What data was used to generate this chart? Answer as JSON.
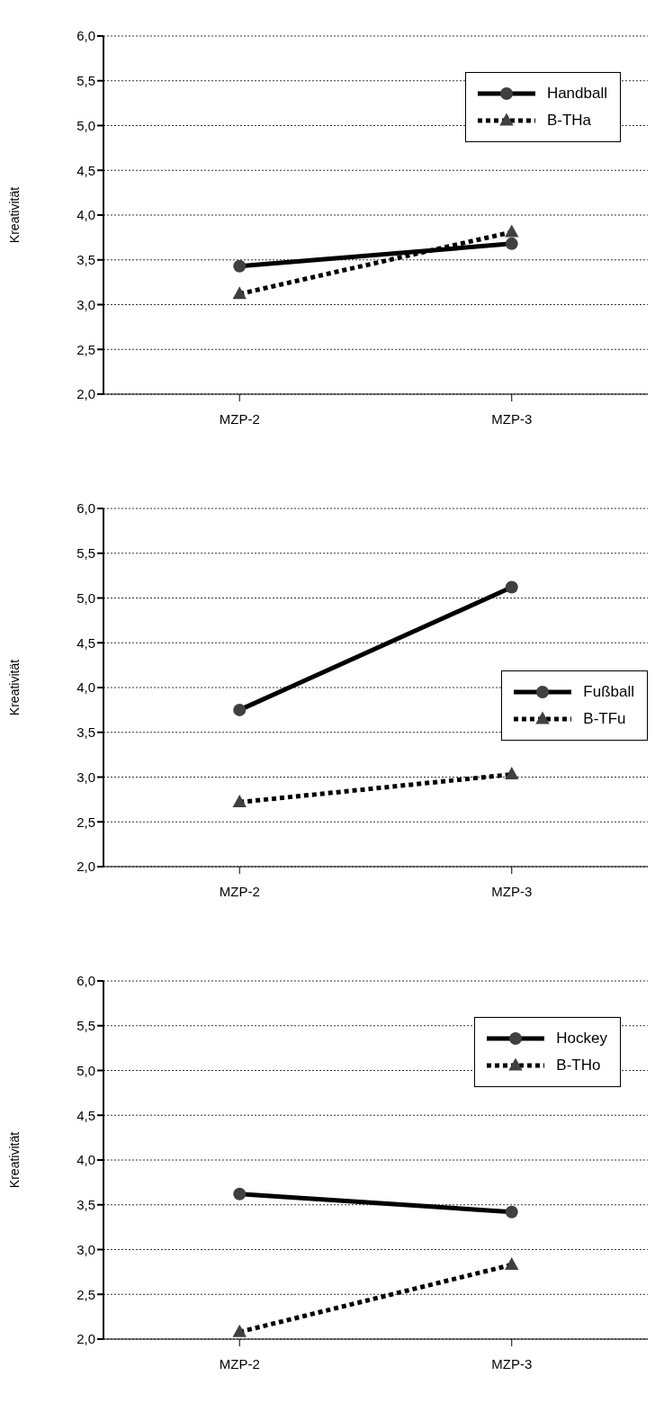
{
  "chart_data": [
    {
      "type": "line",
      "ylabel": "Kreativität",
      "categories": [
        "MZP-2",
        "MZP-3"
      ],
      "ylim": [
        2,
        6
      ],
      "yticks": [
        {
          "value": 2,
          "label": "2,0"
        },
        {
          "value": 2.5,
          "label": "2,5"
        },
        {
          "value": 3,
          "label": "3,0"
        },
        {
          "value": 3.5,
          "label": "3,5"
        },
        {
          "value": 4,
          "label": "4,0"
        },
        {
          "value": 4.5,
          "label": "4,5"
        },
        {
          "value": 5,
          "label": "5,0"
        },
        {
          "value": 5.5,
          "label": "5,5"
        },
        {
          "value": 6,
          "label": "6,0"
        }
      ],
      "grid": "y",
      "legend": "top right",
      "series": [
        {
          "name": "Handball",
          "color": "#000000",
          "marker": "circle",
          "line_style": "solid",
          "values": [
            3.43,
            3.68
          ]
        },
        {
          "name": "B-THa",
          "color": "#000000",
          "marker": "triangle",
          "line_style": "dotted",
          "values": [
            3.12,
            3.81
          ]
        }
      ]
    },
    {
      "type": "line",
      "ylabel": "Kreativität",
      "categories": [
        "MZP-2",
        "MZP-3"
      ],
      "ylim": [
        2,
        6
      ],
      "yticks": [
        {
          "value": 2,
          "label": "2,0"
        },
        {
          "value": 2.5,
          "label": "2,5"
        },
        {
          "value": 3,
          "label": "3,0"
        },
        {
          "value": 3.5,
          "label": "3,5"
        },
        {
          "value": 4,
          "label": "4,0"
        },
        {
          "value": 4.5,
          "label": "4,5"
        },
        {
          "value": 5,
          "label": "5,0"
        },
        {
          "value": 5.5,
          "label": "5,5"
        },
        {
          "value": 6,
          "label": "6,0"
        }
      ],
      "grid": "y",
      "legend": "right",
      "series": [
        {
          "name": "Fußball",
          "color": "#000000",
          "marker": "circle",
          "line_style": "solid",
          "values": [
            3.75,
            5.12
          ]
        },
        {
          "name": "B-TFu",
          "color": "#000000",
          "marker": "triangle",
          "line_style": "dotted",
          "values": [
            2.72,
            3.03
          ]
        }
      ]
    },
    {
      "type": "line",
      "ylabel": "Kreativität",
      "categories": [
        "MZP-2",
        "MZP-3"
      ],
      "ylim": [
        2,
        6
      ],
      "yticks": [
        {
          "value": 2,
          "label": "2,0"
        },
        {
          "value": 2.5,
          "label": "2,5"
        },
        {
          "value": 3,
          "label": "3,0"
        },
        {
          "value": 3.5,
          "label": "3,5"
        },
        {
          "value": 4,
          "label": "4,0"
        },
        {
          "value": 4.5,
          "label": "4,5"
        },
        {
          "value": 5,
          "label": "5,0"
        },
        {
          "value": 5.5,
          "label": "5,5"
        },
        {
          "value": 6,
          "label": "6,0"
        }
      ],
      "grid": "y",
      "legend": "top right",
      "series": [
        {
          "name": "Hockey",
          "color": "#000000",
          "marker": "circle",
          "line_style": "solid",
          "values": [
            3.62,
            3.42
          ]
        },
        {
          "name": "B-THo",
          "color": "#000000",
          "marker": "triangle",
          "line_style": "dotted",
          "values": [
            2.08,
            2.83
          ]
        }
      ]
    }
  ]
}
